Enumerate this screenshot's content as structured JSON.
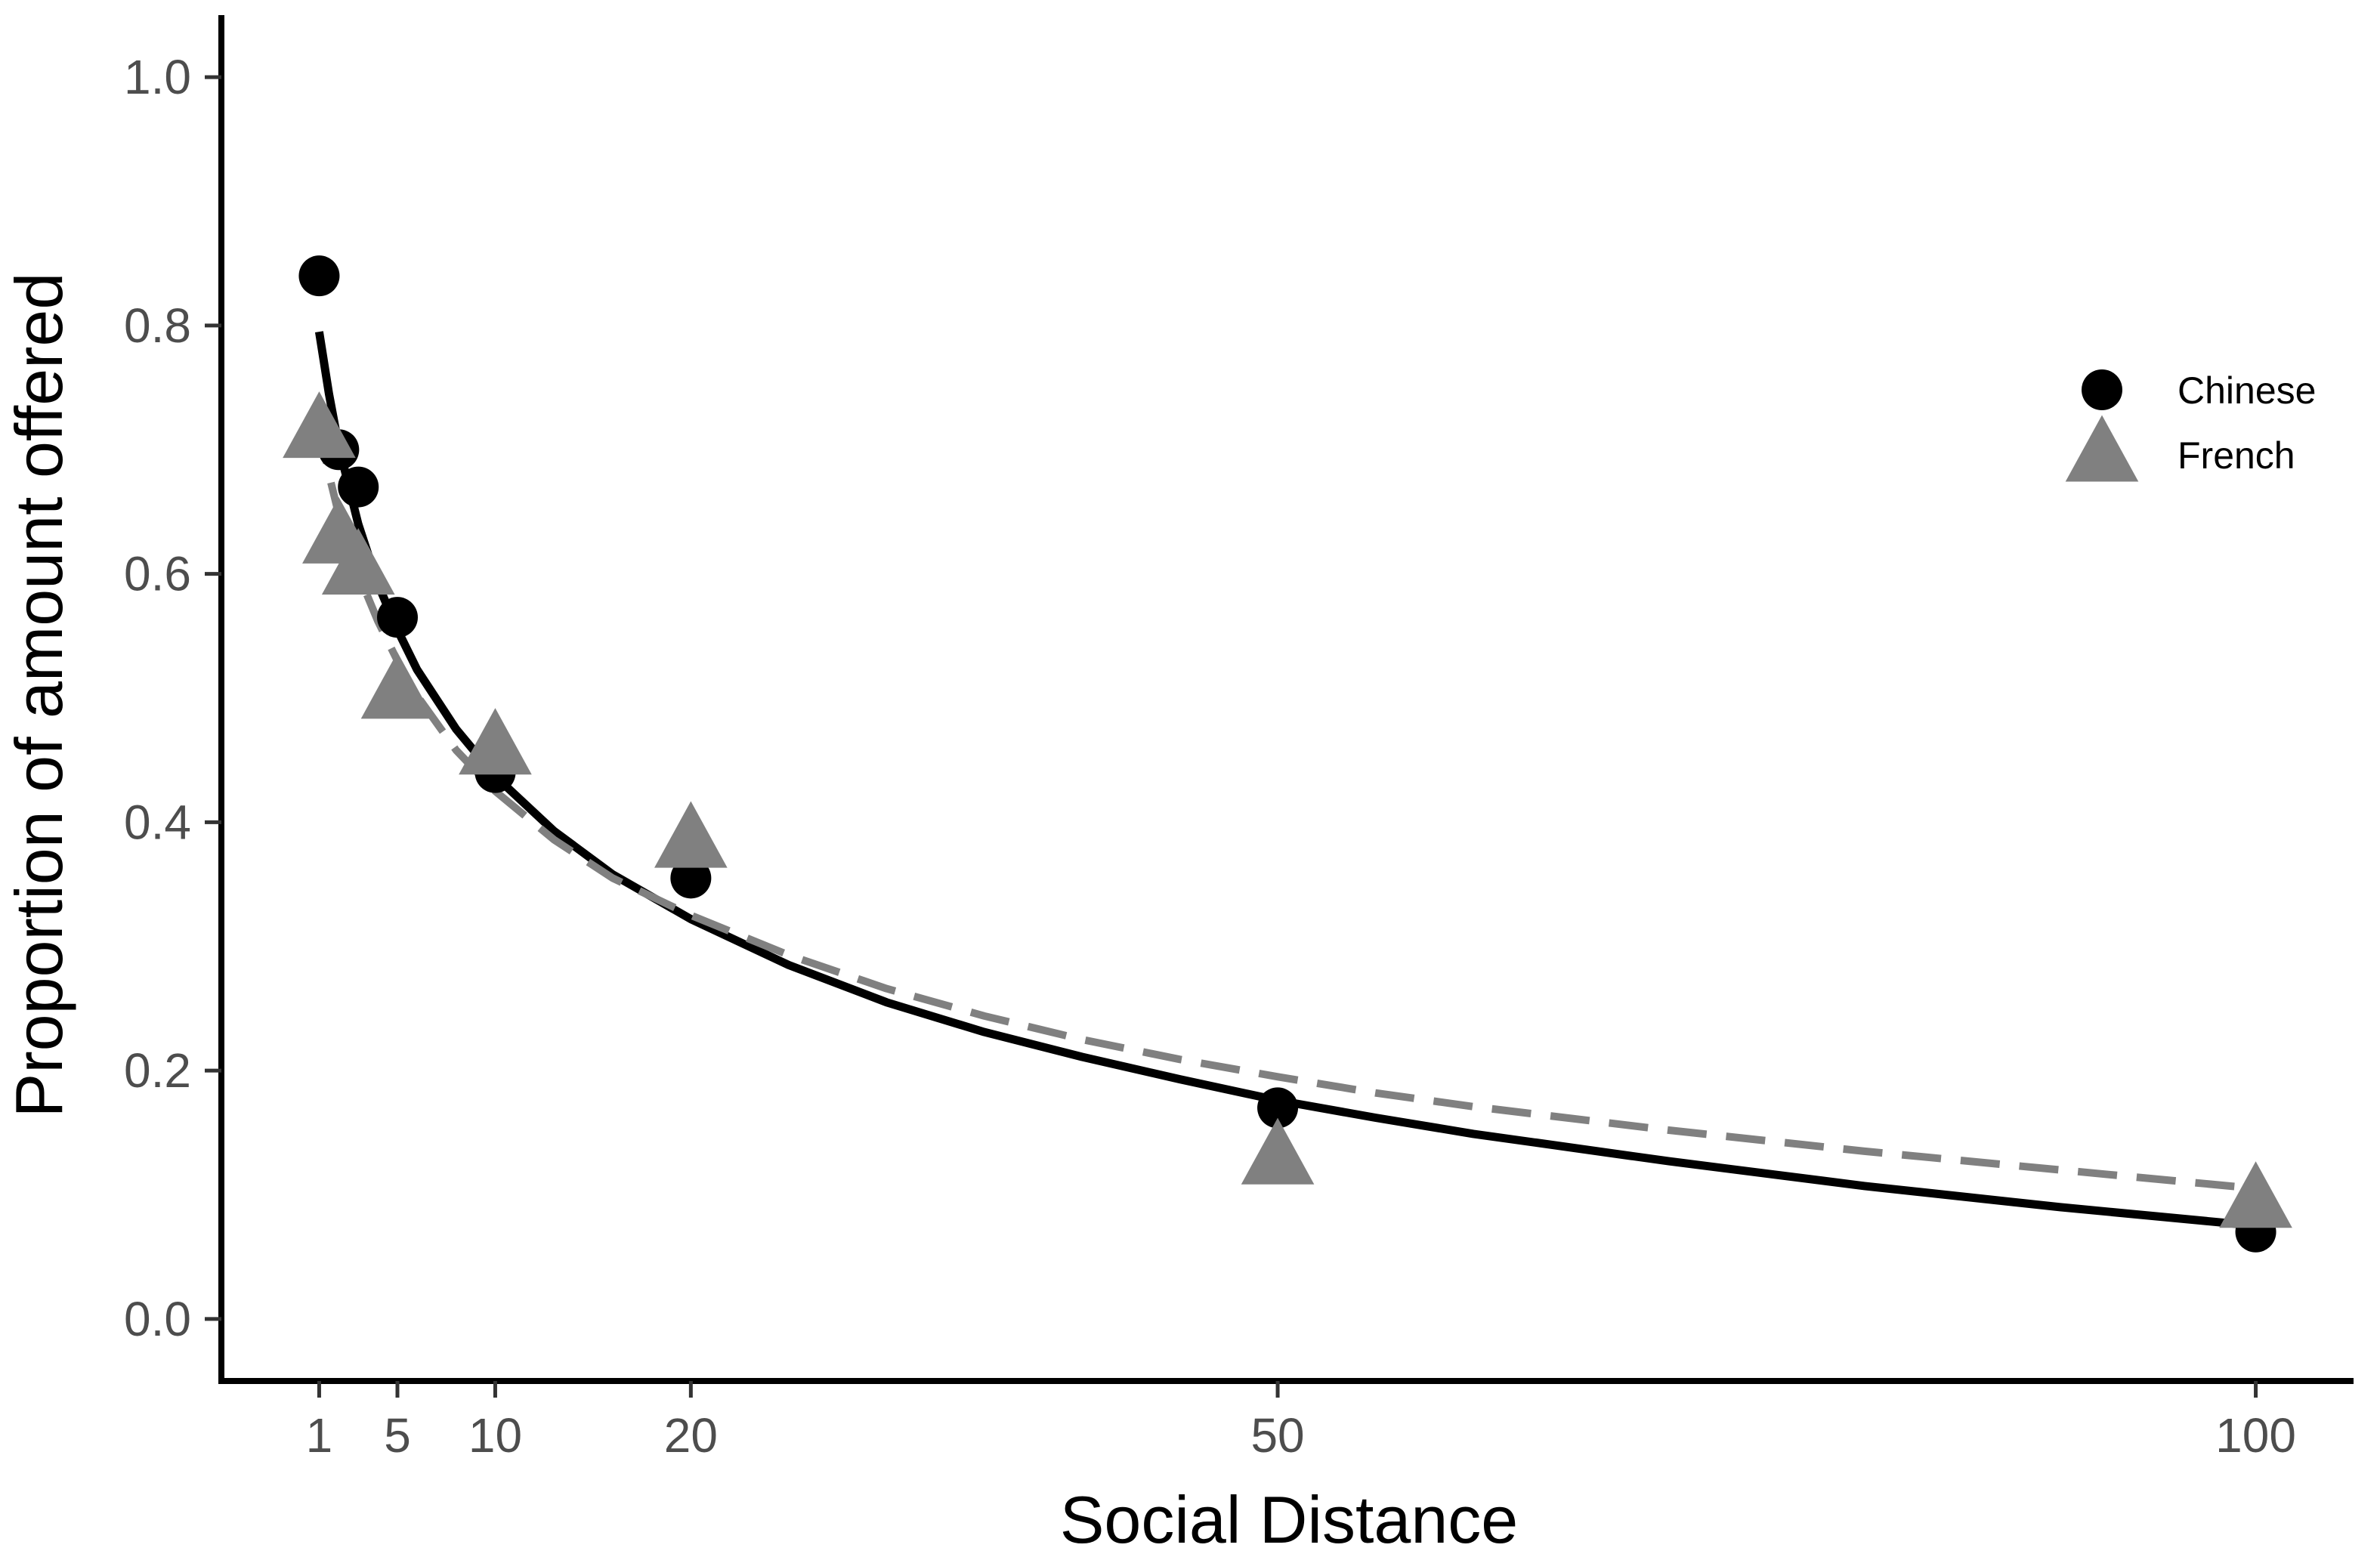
{
  "chart_data": {
    "type": "scatter",
    "title": "",
    "xlabel": "Social Distance",
    "ylabel": "Proportion of amount offered",
    "xlim": [
      -4,
      105
    ],
    "ylim": [
      -0.05,
      1.05
    ],
    "x_ticks": [
      1,
      5,
      10,
      20,
      50,
      100
    ],
    "y_ticks": [
      0.0,
      0.2,
      0.4,
      0.6,
      0.8,
      1.0
    ],
    "x_tick_labels": [
      "1",
      "5",
      "10",
      "20",
      "50",
      "100"
    ],
    "y_tick_labels": [
      "0.0",
      "0.2",
      "0.4",
      "0.6",
      "0.8",
      "1.0"
    ],
    "grid": false,
    "legend_position": "right",
    "series": [
      {
        "name": "Chinese",
        "marker": "circle",
        "color": "#000000",
        "x": [
          1,
          2,
          3,
          5,
          10,
          20,
          50,
          100
        ],
        "y": [
          0.84,
          0.7,
          0.67,
          0.565,
          0.44,
          0.355,
          0.17,
          0.07
        ]
      },
      {
        "name": "French",
        "marker": "triangle",
        "color": "#808080",
        "x": [
          1,
          2,
          3,
          5,
          10,
          20,
          50,
          100
        ],
        "y": [
          0.715,
          0.63,
          0.605,
          0.505,
          0.46,
          0.385,
          0.13,
          0.095
        ]
      }
    ],
    "fits": [
      {
        "series": "Chinese",
        "style": "solid",
        "color": "#000000",
        "x": [
          1,
          1.5,
          2,
          3,
          4,
          5,
          6,
          8,
          10,
          13,
          16,
          20,
          25,
          30,
          35,
          40,
          45,
          50,
          55,
          60,
          70,
          80,
          90,
          100
        ],
        "y": [
          0.795,
          0.745,
          0.703,
          0.64,
          0.592,
          0.555,
          0.523,
          0.475,
          0.437,
          0.393,
          0.358,
          0.322,
          0.285,
          0.255,
          0.231,
          0.211,
          0.193,
          0.176,
          0.162,
          0.149,
          0.127,
          0.107,
          0.09,
          0.075
        ]
      },
      {
        "series": "French",
        "style": "dashed",
        "color": "#808080",
        "x": [
          1,
          1.5,
          2,
          3,
          4,
          5,
          6,
          8,
          10,
          13,
          16,
          20,
          25,
          30,
          35,
          40,
          45,
          50,
          55,
          60,
          70,
          80,
          90,
          100
        ],
        "y": [
          0.72,
          0.68,
          0.648,
          0.6,
          0.562,
          0.53,
          0.502,
          0.458,
          0.425,
          0.386,
          0.355,
          0.325,
          0.293,
          0.266,
          0.244,
          0.225,
          0.209,
          0.195,
          0.182,
          0.171,
          0.152,
          0.135,
          0.12,
          0.105
        ]
      }
    ]
  }
}
